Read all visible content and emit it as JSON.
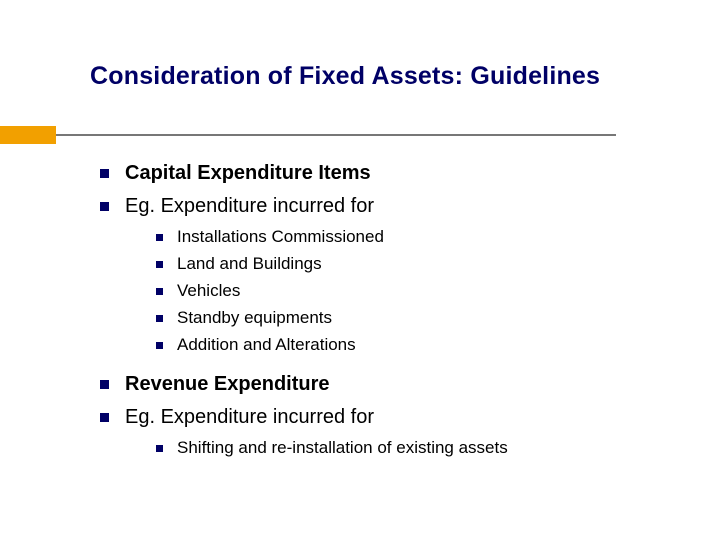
{
  "colors": {
    "title_color": "#000066",
    "bullet_color": "#000066",
    "accent_bar": "#f2a000",
    "divider_line": "#777777",
    "text_color": "#000000",
    "background": "#ffffff"
  },
  "typography": {
    "title_fontsize": 25,
    "l1_fontsize": 20,
    "l2_fontsize": 17,
    "font_family": "Verdana"
  },
  "title": "Consideration of Fixed Assets: Guidelines",
  "sections": [
    {
      "heading": "Capital Expenditure Items",
      "heading_bold": true,
      "subheading": "Eg. Expenditure incurred for",
      "items": [
        "Installations Commissioned",
        "Land and Buildings",
        "Vehicles",
        "Standby equipments",
        "Addition and Alterations"
      ]
    },
    {
      "heading": "Revenue Expenditure",
      "heading_bold": true,
      "subheading": "Eg. Expenditure incurred for",
      "items": [
        "Shifting and re-installation of existing assets"
      ]
    }
  ]
}
